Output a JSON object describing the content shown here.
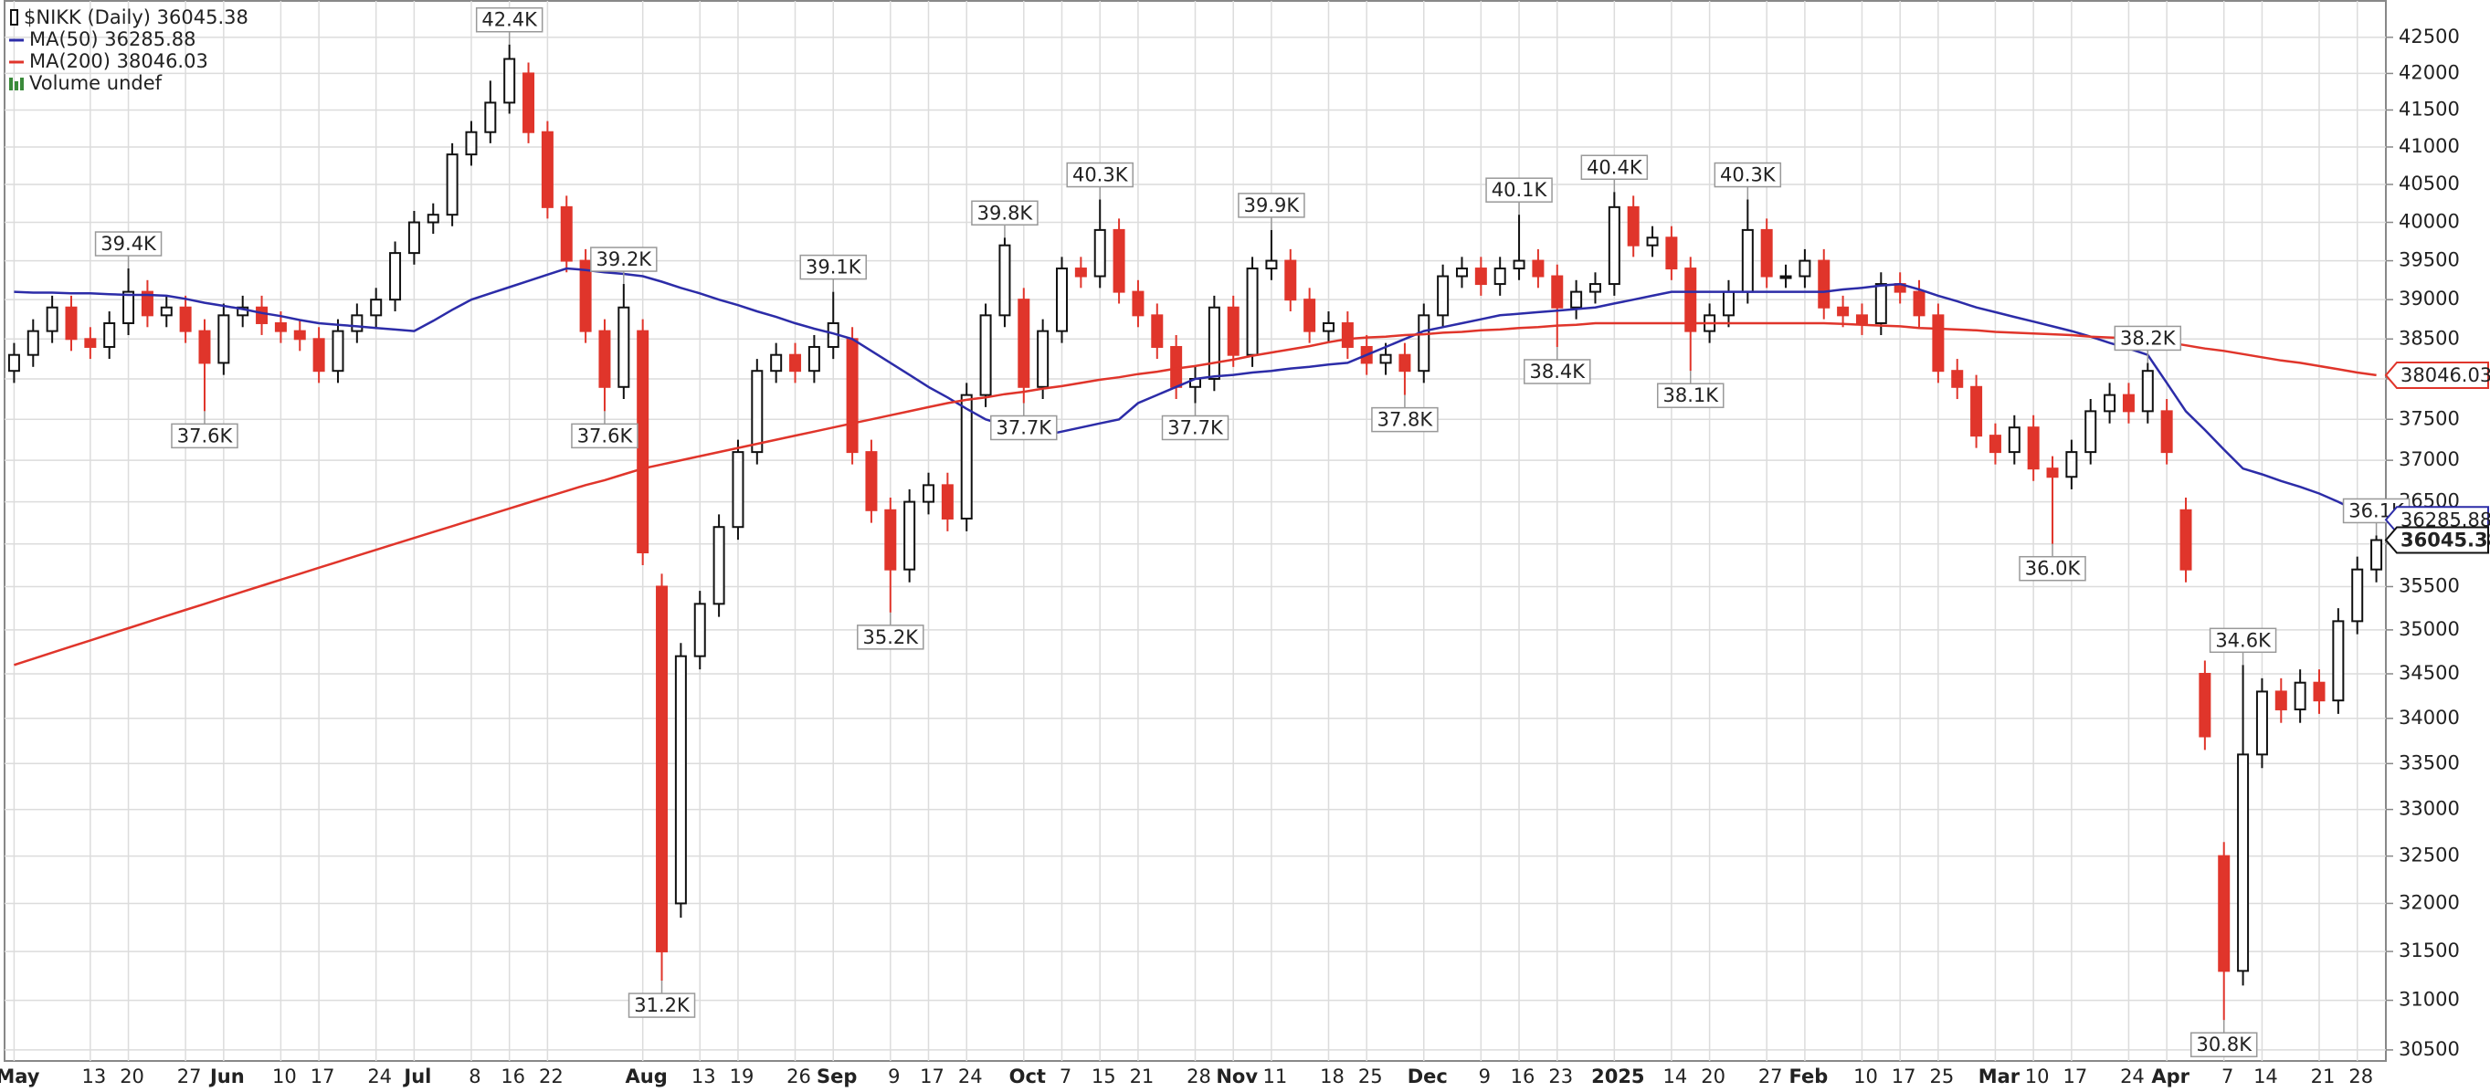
{
  "chart_data": {
    "type": "candlestick",
    "title": "$NIKK (Daily) 36045.38",
    "categories": [
      "May",
      null,
      null,
      null,
      "13",
      null,
      "20",
      null,
      null,
      "27",
      null,
      "Jun",
      null,
      null,
      "10",
      null,
      "17",
      null,
      null,
      "24",
      null,
      "Jul",
      null,
      null,
      "8",
      null,
      "16",
      null,
      "22",
      null,
      null,
      null,
      null,
      "Aug",
      null,
      null,
      "13",
      null,
      "19",
      null,
      null,
      "26",
      null,
      "Sep",
      null,
      null,
      "9",
      null,
      "17",
      null,
      "24",
      null,
      null,
      "Oct",
      null,
      "7",
      null,
      "15",
      null,
      "21",
      null,
      null,
      "28",
      null,
      "Nov",
      null,
      "11",
      null,
      null,
      "18",
      null,
      "25",
      null,
      null,
      "Dec",
      null,
      null,
      "9",
      null,
      "16",
      null,
      "23",
      null,
      null,
      "2025",
      null,
      null,
      "14",
      null,
      "20",
      null,
      null,
      "27",
      null,
      "Feb",
      null,
      null,
      "10",
      null,
      "17",
      null,
      "25",
      null,
      null,
      "Mar",
      null,
      "10",
      null,
      "17",
      null,
      null,
      "24",
      null,
      "Apr",
      null,
      null,
      "7",
      null,
      "14",
      null,
      null,
      "21",
      null,
      "28",
      null
    ],
    "open": [
      38100,
      38300,
      38600,
      38900,
      38500,
      38400,
      38700,
      39100,
      38800,
      38900,
      38600,
      38200,
      38800,
      38900,
      38700,
      38600,
      38500,
      38100,
      38600,
      38800,
      39000,
      39600,
      40000,
      40100,
      40900,
      41200,
      41600,
      42000,
      41200,
      40200,
      39500,
      38600,
      37900,
      38600,
      35500,
      32000,
      34700,
      35300,
      36200,
      37100,
      38100,
      38300,
      38100,
      38400,
      38500,
      37100,
      36400,
      35700,
      36500,
      36700,
      36300,
      37800,
      38800,
      39000,
      37900,
      38600,
      39400,
      39300,
      39900,
      39100,
      38800,
      38400,
      37900,
      38000,
      38900,
      38300,
      39400,
      39500,
      39000,
      38600,
      38700,
      38400,
      38200,
      38300,
      38100,
      38800,
      39300,
      39400,
      39200,
      39400,
      39500,
      39300,
      38900,
      39100,
      39200,
      40200,
      39700,
      39800,
      39400,
      38600,
      38800,
      39100,
      39900,
      39300,
      39300,
      39500,
      38900,
      38800,
      38700,
      39200,
      39100,
      38800,
      38100,
      37900,
      37300,
      37100,
      37400,
      36900,
      36800,
      37100,
      37600,
      37800,
      37600,
      37600,
      36400,
      34500,
      32500,
      31300,
      33600,
      34300,
      34100,
      34400,
      34200,
      35100,
      35700
    ],
    "high": [
      38450,
      38750,
      39050,
      39050,
      38650,
      38850,
      39400,
      39250,
      39050,
      39050,
      38750,
      38950,
      39050,
      39050,
      38850,
      38750,
      38650,
      38750,
      38950,
      39150,
      39750,
      40150,
      40250,
      41050,
      41350,
      41900,
      42400,
      42150,
      41350,
      40350,
      39650,
      38750,
      39200,
      38750,
      35650,
      34850,
      35450,
      36350,
      37250,
      38250,
      38450,
      38450,
      38550,
      39100,
      38650,
      37250,
      36550,
      36650,
      36850,
      36850,
      37950,
      38950,
      39800,
      39150,
      38750,
      39550,
      39550,
      40300,
      40050,
      39250,
      38950,
      38550,
      38150,
      39050,
      39050,
      39550,
      39900,
      39650,
      39150,
      38850,
      38850,
      38550,
      38450,
      38450,
      38950,
      39450,
      39550,
      39550,
      39550,
      40100,
      39650,
      39450,
      39250,
      39350,
      40400,
      40350,
      39950,
      39950,
      39550,
      38950,
      39250,
      40300,
      40050,
      39450,
      39650,
      39650,
      39050,
      38950,
      39350,
      39350,
      39250,
      38950,
      38250,
      38050,
      37450,
      37550,
      37550,
      37050,
      37250,
      37750,
      37950,
      37950,
      38200,
      37750,
      36550,
      34650,
      32650,
      34600,
      34450,
      34450,
      34550,
      34550,
      35250,
      35850,
      36100
    ],
    "low": [
      37950,
      38150,
      38450,
      38350,
      38250,
      38250,
      38550,
      38650,
      38650,
      38450,
      37600,
      38050,
      38650,
      38550,
      38450,
      38350,
      37950,
      37950,
      38450,
      38650,
      38850,
      39450,
      39850,
      39950,
      40750,
      41050,
      41450,
      41050,
      40050,
      39350,
      38450,
      37600,
      37750,
      35750,
      31200,
      31850,
      34550,
      35150,
      36050,
      36950,
      37950,
      37950,
      37950,
      38250,
      36950,
      36250,
      35200,
      35550,
      36350,
      36150,
      36150,
      37650,
      38650,
      37700,
      37750,
      38450,
      39150,
      39150,
      38950,
      38650,
      38250,
      37750,
      37700,
      37850,
      38150,
      38150,
      39250,
      38850,
      38450,
      38450,
      38250,
      38050,
      38050,
      37800,
      37950,
      38650,
      39150,
      39050,
      39050,
      39250,
      39150,
      38400,
      38750,
      38950,
      39050,
      39550,
      39550,
      39250,
      38100,
      38450,
      38650,
      38950,
      39150,
      39150,
      39150,
      38750,
      38650,
      38550,
      38550,
      38950,
      38650,
      37950,
      37750,
      37150,
      36950,
      36950,
      36750,
      36000,
      36650,
      36950,
      37450,
      37450,
      37450,
      36950,
      35550,
      33650,
      30800,
      31150,
      33450,
      33950,
      33950,
      34050,
      34050,
      34950,
      35550
    ],
    "close": [
      38300,
      38600,
      38900,
      38500,
      38400,
      38700,
      39100,
      38800,
      38900,
      38600,
      38200,
      38800,
      38900,
      38700,
      38600,
      38500,
      38100,
      38600,
      38800,
      39000,
      39600,
      40000,
      40100,
      40900,
      41200,
      41600,
      42200,
      41200,
      40200,
      39500,
      38600,
      37900,
      38900,
      35900,
      31500,
      34700,
      35300,
      36200,
      37100,
      38100,
      38300,
      38100,
      38400,
      38700,
      37100,
      36400,
      35700,
      36500,
      36700,
      36300,
      37800,
      38800,
      39700,
      37900,
      38600,
      39400,
      39300,
      39900,
      39100,
      38800,
      38400,
      37900,
      38000,
      38900,
      38300,
      39400,
      39500,
      39000,
      38600,
      38700,
      38400,
      38200,
      38300,
      38100,
      38800,
      39300,
      39400,
      39200,
      39400,
      39500,
      39300,
      38900,
      39100,
      39200,
      40200,
      39700,
      39800,
      39400,
      38600,
      38800,
      39100,
      39900,
      39300,
      39300,
      39500,
      38900,
      38800,
      38700,
      39200,
      39100,
      38800,
      38100,
      37900,
      37300,
      37100,
      37400,
      36900,
      36800,
      37100,
      37600,
      37800,
      37600,
      38100,
      37100,
      35700,
      33800,
      31300,
      33600,
      34300,
      34100,
      34400,
      34200,
      35100,
      35700,
      36045.38
    ],
    "up_color": "#111111",
    "down_color": "#e0352b",
    "series": [
      {
        "name": "MA(50) 36285.88",
        "color": "#2c2ca8",
        "values": [
          39100,
          39090,
          39090,
          39080,
          39080,
          39070,
          39060,
          39060,
          39050,
          39010,
          38960,
          38920,
          38880,
          38830,
          38790,
          38740,
          38700,
          38680,
          38660,
          38640,
          38620,
          38600,
          38730,
          38870,
          39000,
          39080,
          39160,
          39240,
          39320,
          39400,
          39380,
          39350,
          39330,
          39300,
          39230,
          39150,
          39080,
          39000,
          38930,
          38850,
          38780,
          38700,
          38630,
          38570,
          38500,
          38350,
          38200,
          38050,
          37900,
          37770,
          37630,
          37500,
          37430,
          37370,
          37300,
          37350,
          37400,
          37450,
          37500,
          37700,
          37800,
          37900,
          38000,
          38030,
          38050,
          38080,
          38100,
          38130,
          38150,
          38180,
          38200,
          38300,
          38400,
          38500,
          38600,
          38650,
          38700,
          38750,
          38800,
          38820,
          38840,
          38860,
          38880,
          38900,
          38950,
          39000,
          39050,
          39100,
          39100,
          39100,
          39100,
          39100,
          39100,
          39100,
          39100,
          39100,
          39130,
          39150,
          39180,
          39200,
          39130,
          39050,
          38980,
          38900,
          38840,
          38780,
          38720,
          38660,
          38600,
          38530,
          38450,
          38380,
          38300,
          37950,
          37600,
          37370,
          37130,
          36900,
          36830,
          36750,
          36680,
          36600,
          36500,
          36390,
          36285.88
        ]
      },
      {
        "name": "MA(200) 38046.03",
        "color": "#e0352b",
        "values": [
          34600,
          34670,
          34740,
          34810,
          34880,
          34950,
          35020,
          35090,
          35160,
          35230,
          35300,
          35370,
          35440,
          35510,
          35580,
          35650,
          35720,
          35790,
          35860,
          35930,
          36000,
          36070,
          36140,
          36210,
          36280,
          36350,
          36420,
          36490,
          36560,
          36630,
          36700,
          36760,
          36830,
          36900,
          36950,
          37000,
          37050,
          37100,
          37150,
          37200,
          37250,
          37300,
          37350,
          37400,
          37450,
          37500,
          37550,
          37600,
          37650,
          37700,
          37740,
          37770,
          37810,
          37840,
          37880,
          37910,
          37950,
          37990,
          38020,
          38060,
          38090,
          38130,
          38160,
          38200,
          38240,
          38290,
          38330,
          38370,
          38410,
          38460,
          38500,
          38520,
          38530,
          38550,
          38560,
          38580,
          38590,
          38610,
          38620,
          38640,
          38650,
          38670,
          38680,
          38700,
          38700,
          38700,
          38700,
          38700,
          38700,
          38700,
          38700,
          38700,
          38700,
          38700,
          38700,
          38700,
          38690,
          38680,
          38670,
          38660,
          38640,
          38630,
          38620,
          38610,
          38590,
          38580,
          38570,
          38560,
          38550,
          38530,
          38520,
          38510,
          38500,
          38460,
          38420,
          38380,
          38350,
          38310,
          38270,
          38230,
          38200,
          38160,
          38120,
          38080,
          38046.03
        ]
      }
    ],
    "volume_label": "Volume undef",
    "annotations": [
      {
        "index": 6,
        "value": 39400,
        "label": "39.4K"
      },
      {
        "index": 10,
        "value": 37600,
        "label": "37.6K"
      },
      {
        "index": 26,
        "value": 42400,
        "label": "42.4K"
      },
      {
        "index": 32,
        "value": 39200,
        "label": "39.2K"
      },
      {
        "index": 31,
        "value": 37600,
        "label": "37.6K"
      },
      {
        "index": 34,
        "value": 31200,
        "label": "31.2K"
      },
      {
        "index": 43,
        "value": 39100,
        "label": "39.1K"
      },
      {
        "index": 46,
        "value": 35200,
        "label": "35.2K"
      },
      {
        "index": 52,
        "value": 39800,
        "label": "39.8K"
      },
      {
        "index": 53,
        "value": 37700,
        "label": "37.7K"
      },
      {
        "index": 57,
        "value": 40300,
        "label": "40.3K"
      },
      {
        "index": 62,
        "value": 37700,
        "label": "37.7K"
      },
      {
        "index": 66,
        "value": 39900,
        "label": "39.9K"
      },
      {
        "index": 73,
        "value": 37800,
        "label": "37.8K"
      },
      {
        "index": 79,
        "value": 40100,
        "label": "40.1K"
      },
      {
        "index": 81,
        "value": 38400,
        "label": "38.4K"
      },
      {
        "index": 84,
        "value": 40400,
        "label": "40.4K"
      },
      {
        "index": 88,
        "value": 38100,
        "label": "38.1K"
      },
      {
        "index": 91,
        "value": 40300,
        "label": "40.3K"
      },
      {
        "index": 107,
        "value": 36000,
        "label": "36.0K"
      },
      {
        "index": 112,
        "value": 38200,
        "label": "38.2K"
      },
      {
        "index": 116,
        "value": 30800,
        "label": "30.8K"
      },
      {
        "index": 117,
        "value": 34600,
        "label": "34.6K"
      },
      {
        "index": 124,
        "value": 36100,
        "label": "36.1K"
      }
    ],
    "ylim": [
      30390,
      43010
    ],
    "log_scale": true,
    "yticks": [
      30500,
      31000,
      31500,
      32000,
      32500,
      33000,
      33500,
      34000,
      34500,
      35000,
      35500,
      36000,
      36500,
      37000,
      37500,
      38000,
      38500,
      39000,
      39500,
      40000,
      40500,
      41000,
      41500,
      42000,
      42500
    ],
    "grid": true
  }
}
